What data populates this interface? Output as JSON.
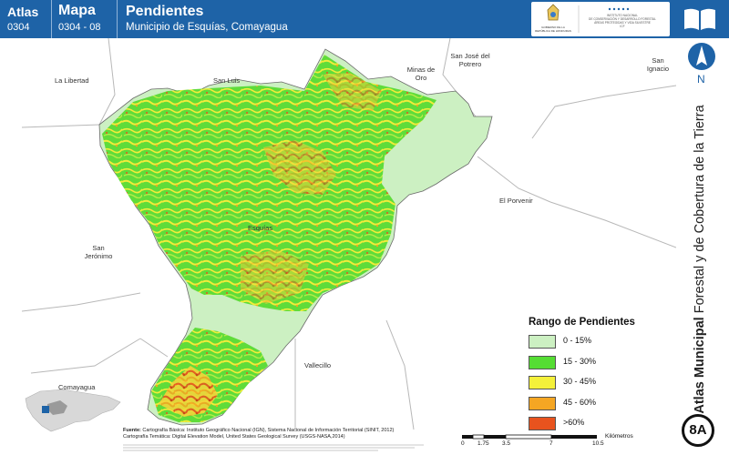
{
  "header": {
    "atlas_label": "Atlas",
    "atlas_code": "0304",
    "map_label": "Mapa",
    "map_code": "0304 - 08",
    "title": "Pendientes",
    "subtitle": "Municipio de Esquías, Comayagua"
  },
  "logos": {
    "left_text": "GOBIERNO DE LA REPÚBLICA DE HONDURAS",
    "right_text": "INSTITUTO NACIONAL DE CONSERVACIÓN Y DESARROLLO FORESTAL ÁREAS PROTEGIDAS Y VIDA SILVESTRE ICF"
  },
  "north_label": "N",
  "side_title_bold": "Atlas Municipal",
  "side_title_rest": "Forestal y de Cobertura de la Tierra",
  "sheet_badge": "8A",
  "places": [
    {
      "name": "La Libertad"
    },
    {
      "name": "San Luis"
    },
    {
      "name": "Minas de Oro"
    },
    {
      "name": "San José del Potrero"
    },
    {
      "name": "San Ignacio"
    },
    {
      "name": "El Porvenir"
    },
    {
      "name": "Esquías"
    },
    {
      "name": "San Jerónimo"
    },
    {
      "name": "Vallecillo"
    },
    {
      "name": "Comayagua"
    }
  ],
  "legend": {
    "title": "Rango de Pendientes",
    "items": [
      {
        "label": "0 - 15%",
        "color": "#ccf0c2"
      },
      {
        "label": "15 - 30%",
        "color": "#55dd33"
      },
      {
        "label": "30 - 45%",
        "color": "#f4f13a"
      },
      {
        "label": "45 - 60%",
        "color": "#f5a623"
      },
      {
        "label": ">60%",
        "color": "#e8531e"
      }
    ]
  },
  "credits": {
    "label": "Fuente:",
    "line1": "Cartografía Básica: Instituto Geográfico Nacional (IGN), Sistema Nacional de Información Territorial (SINIT, 2012)",
    "line2": "Cartografía Temática: Digital Elevation Model, United States Geological Survey (USGS-NASA,2014)"
  },
  "scale": {
    "ticks": [
      "0",
      "1.75",
      "3.5",
      "7",
      "10.5"
    ],
    "unit": "Kilómetros"
  },
  "colors": {
    "header_blue": "#1e63a7",
    "boundary_gray": "#b8b8b8"
  }
}
